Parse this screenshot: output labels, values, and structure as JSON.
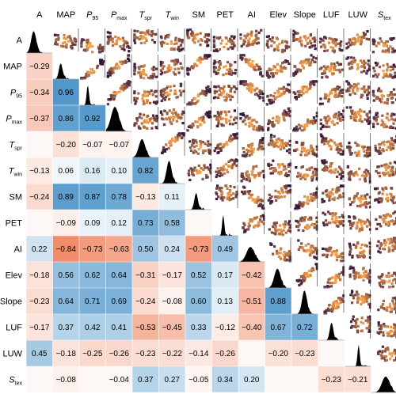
{
  "chart_data": {
    "type": "heatmap",
    "variables": [
      {
        "base": "A",
        "sub": ""
      },
      {
        "base": "MAP",
        "sub": ""
      },
      {
        "base": "P",
        "sub": "95",
        "italic": true
      },
      {
        "base": "P",
        "sub": "max",
        "italic": true
      },
      {
        "base": "T",
        "sub": "spr",
        "italic": true
      },
      {
        "base": "T",
        "sub": "win",
        "italic": true
      },
      {
        "base": "SM",
        "sub": ""
      },
      {
        "base": "PET",
        "sub": ""
      },
      {
        "base": "AI",
        "sub": ""
      },
      {
        "base": "Elev",
        "sub": ""
      },
      {
        "base": "Slope",
        "sub": ""
      },
      {
        "base": "LUF",
        "sub": ""
      },
      {
        "base": "LUW",
        "sub": ""
      },
      {
        "base": "S",
        "sub": "tex",
        "italic": true
      }
    ],
    "correlations": [
      [],
      [
        -0.29
      ],
      [
        -0.34,
        0.96
      ],
      [
        -0.37,
        0.86,
        0.92
      ],
      [
        null,
        -0.2,
        -0.07,
        -0.07
      ],
      [
        -0.13,
        0.06,
        0.16,
        0.1,
        0.82
      ],
      [
        -0.24,
        0.89,
        0.87,
        0.78,
        -0.13,
        0.11
      ],
      [
        null,
        -0.09,
        0.09,
        0.12,
        0.73,
        0.58,
        null
      ],
      [
        0.22,
        -0.84,
        -0.73,
        -0.63,
        0.5,
        0.24,
        -0.73,
        0.49
      ],
      [
        -0.18,
        0.56,
        0.62,
        0.64,
        -0.31,
        -0.17,
        0.52,
        0.17,
        -0.42
      ],
      [
        -0.23,
        0.64,
        0.71,
        0.69,
        -0.24,
        -0.08,
        0.6,
        0.13,
        -0.51,
        0.88
      ],
      [
        -0.17,
        0.37,
        0.42,
        0.41,
        -0.53,
        -0.45,
        0.33,
        -0.12,
        -0.4,
        0.67,
        0.72
      ],
      [
        0.45,
        -0.18,
        -0.25,
        -0.26,
        -0.23,
        -0.22,
        -0.14,
        -0.26,
        null,
        -0.2,
        -0.23,
        null
      ],
      [
        null,
        -0.08,
        null,
        -0.04,
        0.37,
        0.27,
        -0.05,
        0.34,
        0.2,
        null,
        null,
        -0.23,
        -0.21
      ]
    ],
    "colors": {
      "positive": "#4a93c8",
      "negative": "#ef7a52",
      "density": "#000000",
      "scatter_low": "#2b0f3a",
      "scatter_high": "#f7a24a"
    },
    "legend": "none",
    "grid": false
  }
}
